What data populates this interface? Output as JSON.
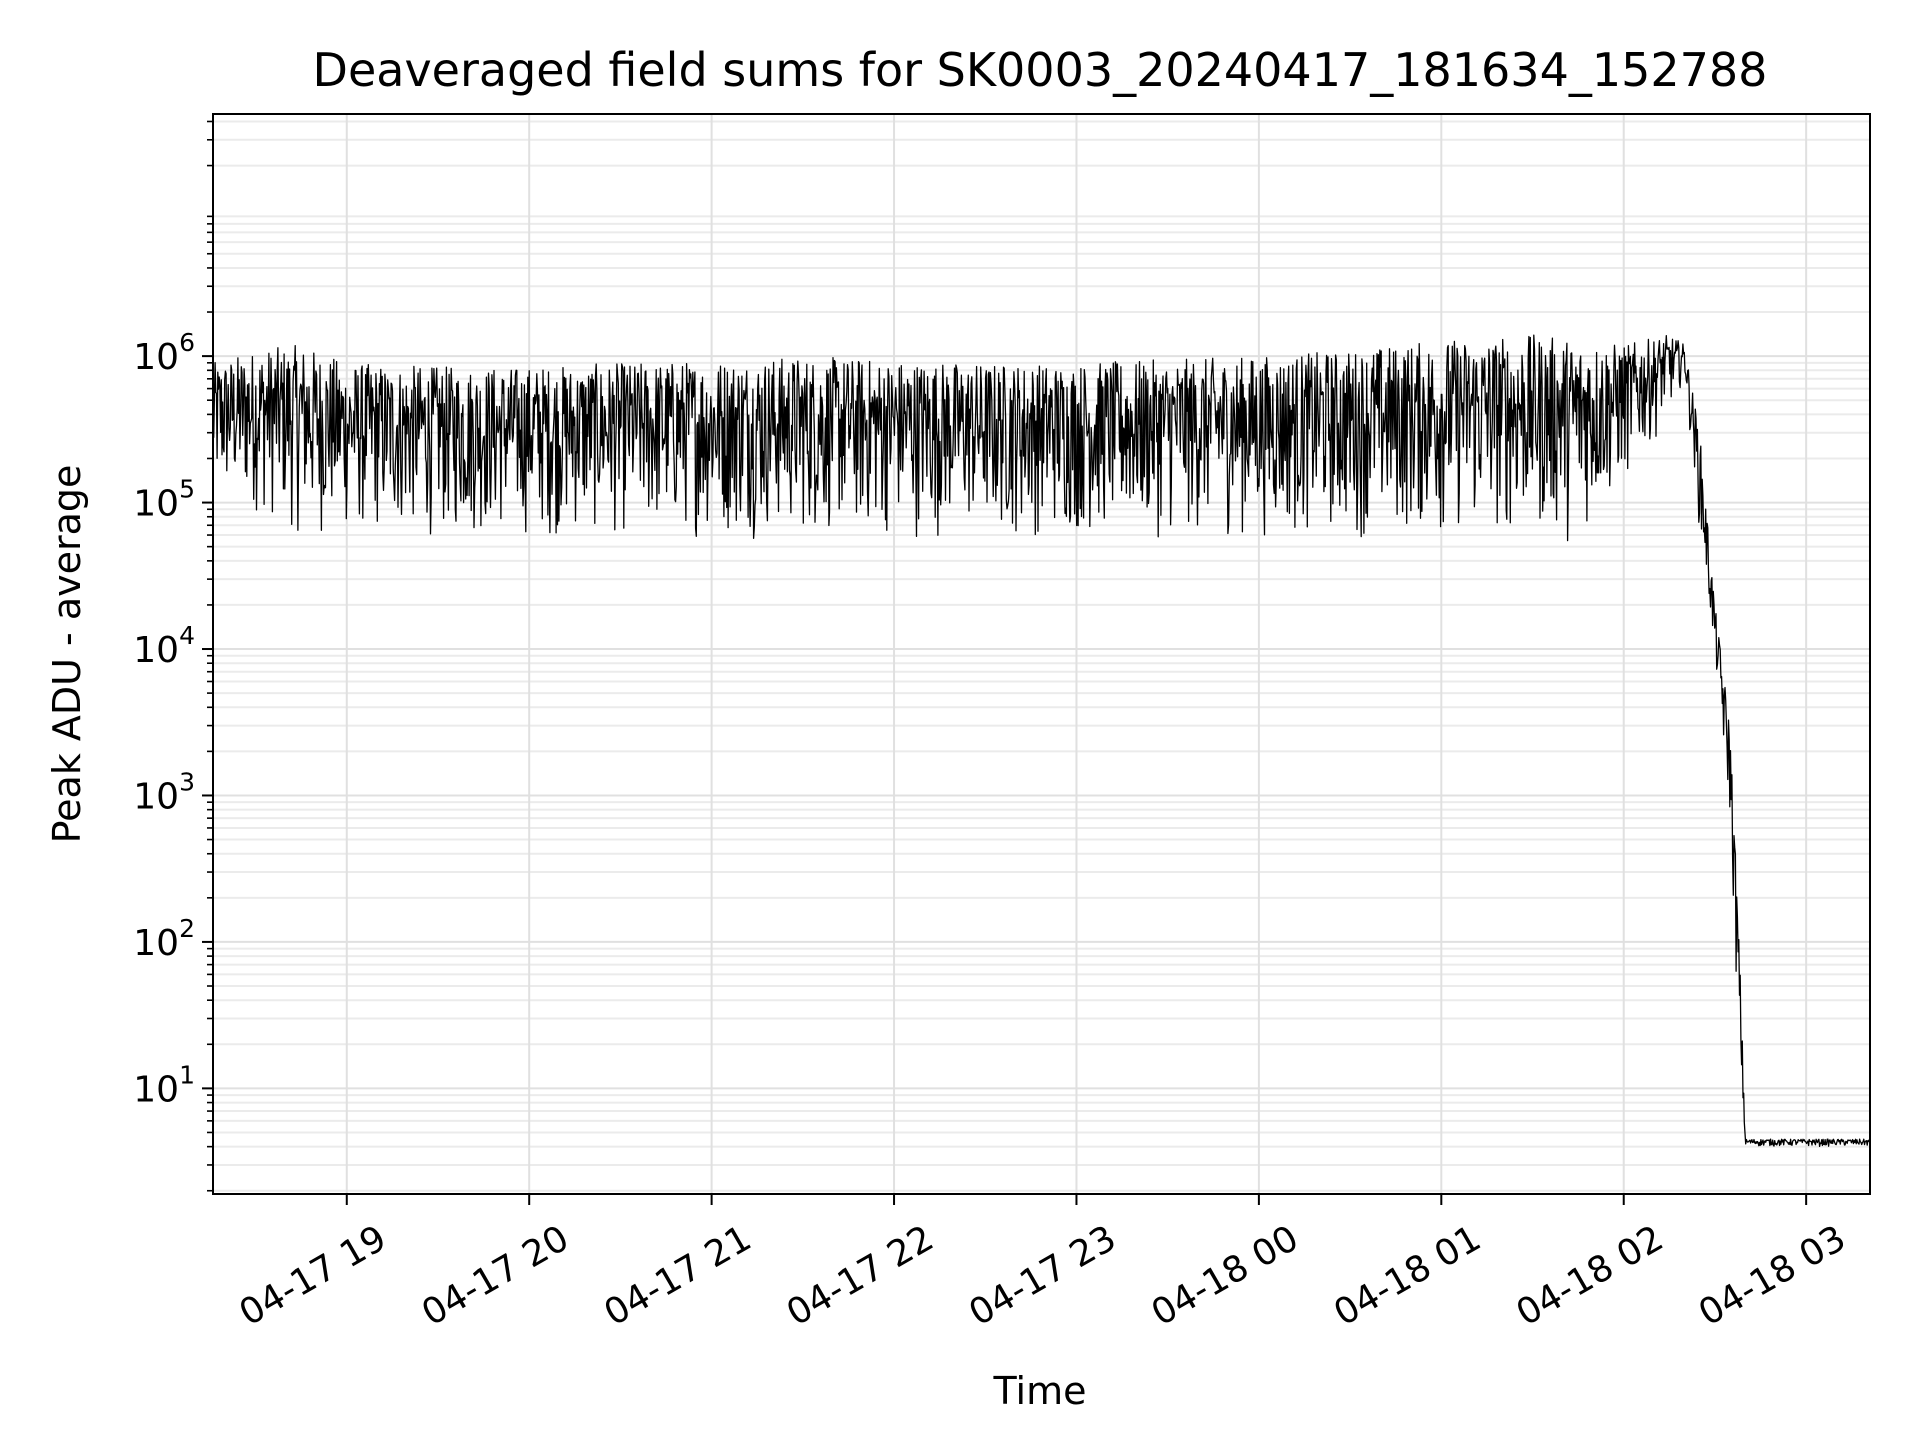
{
  "chart_data": {
    "type": "line",
    "title": "Deaveraged field sums for SK0003_20240417_181634_152788",
    "xlabel": "Time",
    "ylabel": "Peak ADU - average",
    "yscale": "log",
    "ylim": [
      1.9,
      45000000
    ],
    "xlim": [
      "04-17 18:16",
      "04-18 03:21"
    ],
    "x_tick_labels": [
      "04-17 19",
      "04-17 20",
      "04-17 21",
      "04-17 22",
      "04-17 23",
      "04-18 00",
      "04-18 01",
      "04-18 02",
      "04-18 03"
    ],
    "y_tick_labels": [
      {
        "base": "10",
        "exp": "1",
        "value": 10
      },
      {
        "base": "10",
        "exp": "2",
        "value": 100
      },
      {
        "base": "10",
        "exp": "3",
        "value": 1000
      },
      {
        "base": "10",
        "exp": "4",
        "value": 10000
      },
      {
        "base": "10",
        "exp": "5",
        "value": 100000
      },
      {
        "base": "10",
        "exp": "6",
        "value": 1000000
      }
    ],
    "grid": true,
    "series_color": "#000000",
    "series": [
      {
        "x": [
          "04-17 18:16",
          "04-17 18:30",
          "04-17 18:45",
          "04-17 19:00",
          "04-17 19:30",
          "04-17 20:00",
          "04-17 20:30",
          "04-17 21:00",
          "04-17 21:30",
          "04-17 22:00",
          "04-17 22:30",
          "04-17 23:00",
          "04-17 23:30",
          "04-18 00:00",
          "04-18 00:30",
          "04-18 01:00",
          "04-18 01:30",
          "04-18 01:45",
          "04-18 02:00",
          "04-18 02:15",
          "04-18 02:20",
          "04-18 02:25",
          "04-18 02:30",
          "04-18 02:35",
          "04-18 02:38",
          "04-18 02:40",
          "04-18 03:21"
        ],
        "y_low": [
          90000,
          80000,
          55000,
          55000,
          55000,
          55000,
          55000,
          55000,
          55000,
          55000,
          55000,
          55000,
          55000,
          55000,
          55000,
          55000,
          55000,
          50000,
          120000,
          400000,
          700000,
          60000,
          8000,
          600,
          15,
          4,
          4
        ],
        "y_high": [
          900000,
          1100000,
          1200000,
          900000,
          850000,
          850000,
          900000,
          950000,
          1000000,
          950000,
          900000,
          900000,
          950000,
          1000000,
          1100000,
          1300000,
          1400000,
          1300000,
          1200000,
          1400000,
          1200000,
          300000,
          20000,
          3000,
          100,
          4.5,
          4.5
        ]
      }
    ]
  }
}
